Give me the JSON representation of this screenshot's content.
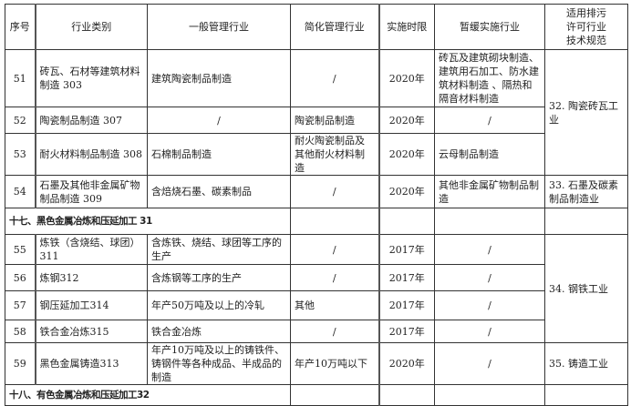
{
  "headers": [
    "序号",
    "行业类别",
    "一般管理行业",
    "简化管理行业",
    "实施时限",
    "暂缓实施行业",
    "适用排污许可行业技术规范"
  ],
  "header_last_lines": [
    "适用排污",
    "许可行业",
    "技术规范"
  ],
  "rows": [
    {
      "no": "51",
      "category": "砖瓦、石材等建筑材料制造 303",
      "general": "建筑陶瓷制品制造",
      "simplified": "/",
      "deadline": "2020年",
      "deferred": "砖瓦及建筑砌块制造、建筑用石加工、防水建筑材料制造 、隔热和隔音材料制造"
    },
    {
      "no": "52",
      "category": "陶瓷制品制造 307",
      "general": "/",
      "simplified": "陶瓷制品制造",
      "deadline": "2020年",
      "deferred": "/"
    },
    {
      "no": "53",
      "category": "耐火材料制品制造 308",
      "general": "石棉制品制造",
      "simplified": "耐火陶瓷制品及其他耐火材料制造",
      "deadline": "2020年",
      "deferred": "云母制品制造"
    },
    {
      "no": "54",
      "category": "石墨及其他非金属矿物制品制造 309",
      "general": "含焙烧石墨、碳素制品",
      "simplified": "/",
      "deadline": "2020年",
      "deferred": "其他非金属矿物制品制造"
    },
    {
      "no": "55",
      "category": "炼铁（含烧结、球团）311",
      "general": "含炼铁、烧结、球团等工序的生产",
      "simplified": "/",
      "deadline": "2017年",
      "deferred": "/"
    },
    {
      "no": "56",
      "category": "炼钢312",
      "general": "含炼钢等工序的生产",
      "simplified": "/",
      "deadline": "2017年",
      "deferred": "/"
    },
    {
      "no": "57",
      "category": "钢压延加工314",
      "general": "年产50万吨及以上的冷轧",
      "simplified": "其他",
      "deadline": "2017年",
      "deferred": "/"
    },
    {
      "no": "58",
      "category": "铁合金冶炼315",
      "general": "铁合金冶炼",
      "simplified": "/",
      "deadline": "2017年",
      "deferred": "/"
    },
    {
      "no": "59",
      "category": "黑色金属铸造313",
      "general": "年产10万吨及以上的铸铁件、铸钢件等各种成品、半成品的制造",
      "simplified": "年产10万吨以下",
      "deadline": "2020年",
      "deferred": "/"
    }
  ],
  "specs": {
    "s32": "32. 陶瓷砖瓦工业",
    "s33": "33. 石墨及碳素制品制造业",
    "s34": "34. 钢铁工业",
    "s35": "35. 铸造工业"
  },
  "sections": {
    "s17": "十七、黑色金属冶炼和压延加工 31",
    "s18": "十八、有色金属冶炼和压延加工32"
  }
}
